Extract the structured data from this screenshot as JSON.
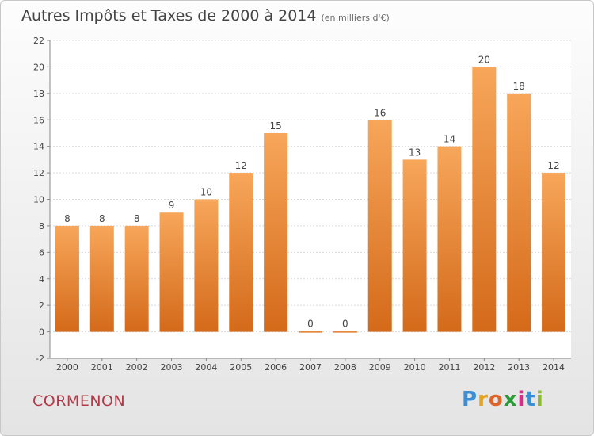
{
  "header": {
    "title": "Autres Impôts et Taxes de 2000 à 2014",
    "unit": "(en milliers d'€)"
  },
  "footer": {
    "city": "CORMENON",
    "brand_letters": [
      "P",
      "r",
      "o",
      "x",
      "i",
      "t",
      "i"
    ],
    "brand_colors": [
      "#3a8fd6",
      "#e8a21c",
      "#e06428",
      "#2d9a3a",
      "#d02f8a",
      "#3a8fd6",
      "#8bbd2a"
    ]
  },
  "chart_data": {
    "type": "bar",
    "title": "Autres Impôts et Taxes de 2000 à 2014",
    "categories": [
      "2000",
      "2001",
      "2002",
      "2003",
      "2004",
      "2005",
      "2006",
      "2007",
      "2008",
      "2009",
      "2010",
      "2011",
      "2012",
      "2013",
      "2014"
    ],
    "values": [
      8,
      8,
      8,
      9,
      10,
      12,
      15,
      0,
      0,
      16,
      13,
      14,
      20,
      18,
      12
    ],
    "data_labels": [
      "8",
      "8",
      "8",
      "9",
      "10",
      "12",
      "15",
      "0",
      "0",
      "16",
      "13",
      "14",
      "20",
      "18",
      "12"
    ],
    "ylim": [
      -2,
      22
    ],
    "yticks": [
      -2,
      0,
      2,
      4,
      6,
      8,
      10,
      12,
      14,
      16,
      18,
      20,
      22
    ],
    "grid": true,
    "bar_color_top": "#f7a65a",
    "bar_color_bottom": "#d46a1a"
  }
}
